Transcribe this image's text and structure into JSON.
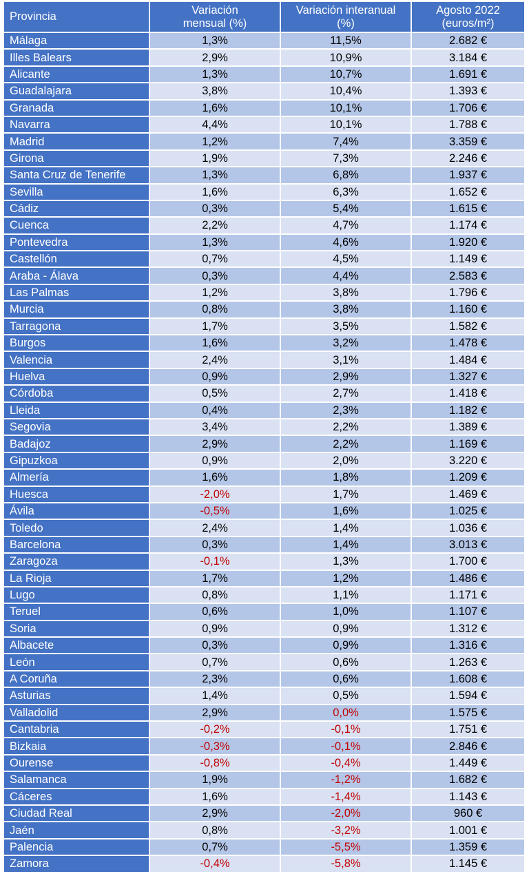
{
  "table": {
    "headers": [
      {
        "line1": "Provincia",
        "line2": ""
      },
      {
        "line1": "Variación",
        "line2": "mensual (%)"
      },
      {
        "line1": "Variación interanual",
        "line2": "(%)"
      },
      {
        "line1": "Agosto 2022",
        "line2": "(euros/m²)"
      }
    ],
    "negative_color": "#c00000",
    "header_color": "#4472c4",
    "row_colors": [
      "#b4c6e7",
      "#d9e1f2"
    ],
    "rows": [
      [
        "Málaga",
        "1,3%",
        "11,5%",
        "2.682 €"
      ],
      [
        "Illes Balears",
        "2,9%",
        "10,9%",
        "3.184 €"
      ],
      [
        "Alicante",
        "1,3%",
        "10,7%",
        "1.691 €"
      ],
      [
        "Guadalajara",
        "3,8%",
        "10,4%",
        "1.393 €"
      ],
      [
        "Granada",
        "1,6%",
        "10,1%",
        "1.706 €"
      ],
      [
        "Navarra",
        "4,4%",
        "10,1%",
        "1.788 €"
      ],
      [
        "Madrid",
        "1,2%",
        "7,4%",
        "3.359 €"
      ],
      [
        "Girona",
        "1,9%",
        "7,3%",
        "2.246 €"
      ],
      [
        "Santa Cruz de Tenerife",
        "1,3%",
        "6,8%",
        "1.937 €"
      ],
      [
        "Sevilla",
        "1,6%",
        "6,3%",
        "1.652 €"
      ],
      [
        "Cádiz",
        "0,3%",
        "5,4%",
        "1.615 €"
      ],
      [
        "Cuenca",
        "2,2%",
        "4,7%",
        "1.174 €"
      ],
      [
        "Pontevedra",
        "1,3%",
        "4,6%",
        "1.920 €"
      ],
      [
        "Castellón",
        "0,7%",
        "4,5%",
        "1.149 €"
      ],
      [
        "Araba - Álava",
        "0,3%",
        "4,4%",
        "2.583 €"
      ],
      [
        "Las Palmas",
        "1,2%",
        "3,8%",
        "1.796 €"
      ],
      [
        "Murcia",
        "0,8%",
        "3,8%",
        "1.160 €"
      ],
      [
        "Tarragona",
        "1,7%",
        "3,5%",
        "1.582 €"
      ],
      [
        "Burgos",
        "1,6%",
        "3,2%",
        "1.478 €"
      ],
      [
        "Valencia",
        "2,4%",
        "3,1%",
        "1.484 €"
      ],
      [
        "Huelva",
        "0,9%",
        "2,9%",
        "1.327 €"
      ],
      [
        "Córdoba",
        "0,5%",
        "2,7%",
        "1.418 €"
      ],
      [
        "Lleida",
        "0,4%",
        "2,3%",
        "1.182 €"
      ],
      [
        "Segovia",
        "3,4%",
        "2,2%",
        "1.389 €"
      ],
      [
        "Badajoz",
        "2,9%",
        "2,2%",
        "1.169 €"
      ],
      [
        "Gipuzkoa",
        "0,9%",
        "2,0%",
        "3.220 €"
      ],
      [
        "Almería",
        "1,6%",
        "1,8%",
        "1.209 €"
      ],
      [
        "Huesca",
        "-2,0%",
        "1,7%",
        "1.469 €"
      ],
      [
        "Ávila",
        "-0,5%",
        "1,6%",
        "1.025 €"
      ],
      [
        "Toledo",
        "2,4%",
        "1,4%",
        "1.036 €"
      ],
      [
        "Barcelona",
        "0,3%",
        "1,4%",
        "3.013 €"
      ],
      [
        "Zaragoza",
        "-0,1%",
        "1,3%",
        "1.700 €"
      ],
      [
        "La Rioja",
        "1,7%",
        "1,2%",
        "1.486 €"
      ],
      [
        "Lugo",
        "0,8%",
        "1,1%",
        "1.171 €"
      ],
      [
        "Teruel",
        "0,6%",
        "1,0%",
        "1.107 €"
      ],
      [
        "Soria",
        "0,9%",
        "0,9%",
        "1.312 €"
      ],
      [
        "Albacete",
        "0,3%",
        "0,9%",
        "1.316 €"
      ],
      [
        "León",
        "0,7%",
        "0,6%",
        "1.263 €"
      ],
      [
        "A Coruña",
        "2,3%",
        "0,6%",
        "1.608 €"
      ],
      [
        "Asturias",
        "1,4%",
        "0,5%",
        "1.594 €"
      ],
      [
        "Valladolid",
        "2,9%",
        "0,0%",
        "1.575 €"
      ],
      [
        "Cantabria",
        "-0,2%",
        "-0,1%",
        "1.751 €"
      ],
      [
        "Bizkaia",
        "-0,3%",
        "-0,1%",
        "2.846 €"
      ],
      [
        "Ourense",
        "-0,8%",
        "-0,4%",
        "1.449 €"
      ],
      [
        "Salamanca",
        "1,9%",
        "-1,2%",
        "1.682 €"
      ],
      [
        "Cáceres",
        "1,6%",
        "-1,4%",
        "1.143 €"
      ],
      [
        "Ciudad Real",
        "2,9%",
        "-2,0%",
        "960 €"
      ],
      [
        "Jaén",
        "0,8%",
        "-3,2%",
        "1.001 €"
      ],
      [
        "Palencia",
        "0,7%",
        "-5,5%",
        "1.359 €"
      ],
      [
        "Zamora",
        "-0,4%",
        "-5,8%",
        "1.145 €"
      ]
    ],
    "red_cells": [
      [
        27,
        1
      ],
      [
        28,
        1
      ],
      [
        31,
        1
      ],
      [
        40,
        2
      ],
      [
        41,
        1
      ],
      [
        41,
        2
      ],
      [
        42,
        1
      ],
      [
        42,
        2
      ],
      [
        43,
        1
      ],
      [
        43,
        2
      ],
      [
        44,
        2
      ],
      [
        45,
        2
      ],
      [
        46,
        2
      ],
      [
        47,
        2
      ],
      [
        48,
        2
      ],
      [
        49,
        1
      ],
      [
        49,
        2
      ]
    ]
  }
}
